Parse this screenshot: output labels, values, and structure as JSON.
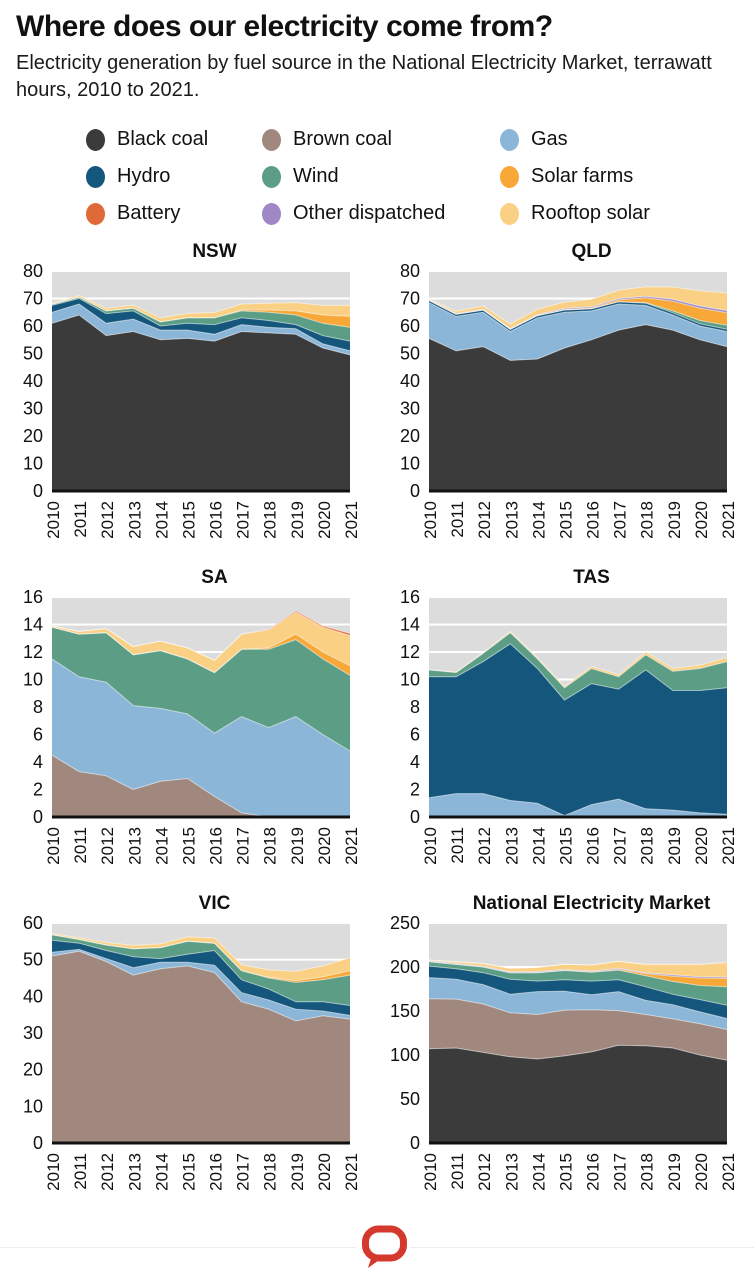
{
  "header": {
    "title": "Where does our electricity come from?",
    "subtitle": "Electricity generation by fuel source in the National Electricity Market, terrawatt hours, 2010 to 2021."
  },
  "colors": {
    "black_coal": "#3b3b3b",
    "brown_coal": "#a0887f",
    "gas": "#8cb6d7",
    "hydro": "#15567d",
    "wind": "#5c9e85",
    "solar_farms": "#f7a838",
    "battery": "#e0693a",
    "other_dispatched": "#9e88c6",
    "rooftop_solar": "#f9d084",
    "plot_bg": "#dcdcdc",
    "grid": "#ffffff",
    "axis": "#111111",
    "logo_red": "#d5382c"
  },
  "legend": {
    "items": [
      {
        "label": "Black coal",
        "key": "black_coal"
      },
      {
        "label": "Brown coal",
        "key": "brown_coal"
      },
      {
        "label": "Gas",
        "key": "gas"
      },
      {
        "label": "Hydro",
        "key": "hydro"
      },
      {
        "label": "Wind",
        "key": "wind"
      },
      {
        "label": "Solar farms",
        "key": "solar_farms"
      },
      {
        "label": "Battery",
        "key": "battery"
      },
      {
        "label": "Other dispatched",
        "key": "other_dispatched"
      },
      {
        "label": "Rooftop solar",
        "key": "rooftop_solar"
      }
    ]
  },
  "chart_data": [
    {
      "type": "area",
      "title": "NSW",
      "x": [
        2010,
        2011,
        2012,
        2013,
        2014,
        2015,
        2016,
        2017,
        2018,
        2019,
        2020,
        2021
      ],
      "ylim": [
        0,
        80
      ],
      "ytick": 10,
      "units": "TWh",
      "series": [
        {
          "name": "Black coal",
          "key": "black_coal",
          "values": [
            61,
            64,
            56.5,
            58,
            55,
            55.5,
            54.5,
            58,
            57.5,
            57,
            52,
            49.5
          ]
        },
        {
          "name": "Gas",
          "key": "gas",
          "values": [
            4,
            4,
            4.5,
            4.5,
            3.5,
            3,
            2.5,
            2.5,
            2,
            2,
            1.5,
            1.5
          ]
        },
        {
          "name": "Hydro",
          "key": "hydro",
          "values": [
            2.5,
            2,
            3.5,
            3,
            1.5,
            2.5,
            3.5,
            2.5,
            2.5,
            1.5,
            3,
            3.5
          ]
        },
        {
          "name": "Wind",
          "key": "wind",
          "values": [
            0.4,
            0.5,
            1,
            1,
            1.5,
            2,
            2.5,
            2.5,
            3,
            3.5,
            4.5,
            5
          ]
        },
        {
          "name": "Solar farms",
          "key": "solar_farms",
          "values": [
            0,
            0,
            0,
            0,
            0,
            0,
            0,
            0.3,
            0.8,
            1.5,
            3,
            4
          ]
        },
        {
          "name": "Rooftop solar",
          "key": "rooftop_solar",
          "values": [
            0.3,
            0.6,
            0.9,
            1.1,
            1.4,
            1.6,
            1.9,
            2.2,
            2.5,
            3,
            3.5,
            4
          ]
        }
      ]
    },
    {
      "type": "area",
      "title": "QLD",
      "x": [
        2010,
        2011,
        2012,
        2013,
        2014,
        2015,
        2016,
        2017,
        2018,
        2019,
        2020,
        2021
      ],
      "ylim": [
        0,
        80
      ],
      "ytick": 10,
      "units": "TWh",
      "series": [
        {
          "name": "Black coal",
          "key": "black_coal",
          "values": [
            55.5,
            51,
            52.5,
            47.5,
            48,
            52,
            55,
            58.5,
            60.5,
            58.5,
            55,
            52.5
          ]
        },
        {
          "name": "Gas",
          "key": "gas",
          "values": [
            13,
            12.5,
            12.5,
            10.5,
            15,
            13,
            10.5,
            9.5,
            7,
            5.5,
            5,
            5.5
          ]
        },
        {
          "name": "Hydro",
          "key": "hydro",
          "values": [
            0.8,
            0.8,
            0.8,
            0.8,
            0.8,
            0.8,
            0.8,
            0.8,
            0.8,
            0.8,
            0.8,
            0.8
          ]
        },
        {
          "name": "Wind",
          "key": "wind",
          "values": [
            0,
            0,
            0,
            0,
            0,
            0,
            0,
            0,
            0.2,
            0.7,
            1.2,
            1.5
          ]
        },
        {
          "name": "Solar farms",
          "key": "solar_farms",
          "values": [
            0,
            0,
            0,
            0,
            0,
            0.2,
            0.3,
            0.7,
            1.8,
            3.5,
            4.5,
            4.5
          ]
        },
        {
          "name": "Other dispatched",
          "key": "other_dispatched",
          "values": [
            0.3,
            0.3,
            0.3,
            0.3,
            0.3,
            0.4,
            0.4,
            0.5,
            0.5,
            0.7,
            0.8,
            0.8
          ]
        },
        {
          "name": "Rooftop solar",
          "key": "rooftop_solar",
          "values": [
            0.3,
            0.8,
            1.2,
            1.6,
            2,
            2.3,
            2.7,
            3,
            3.5,
            4.5,
            5.5,
            6.5
          ]
        }
      ]
    },
    {
      "type": "area",
      "title": "SA",
      "x": [
        2010,
        2011,
        2012,
        2013,
        2014,
        2015,
        2016,
        2017,
        2018,
        2019,
        2020,
        2021
      ],
      "ylim": [
        0,
        16
      ],
      "ytick": 2,
      "units": "TWh",
      "series": [
        {
          "name": "Brown coal",
          "key": "brown_coal",
          "values": [
            4.5,
            3.3,
            3,
            2,
            2.6,
            2.8,
            1.5,
            0.3,
            0,
            0,
            0,
            0
          ]
        },
        {
          "name": "Gas",
          "key": "gas",
          "values": [
            7,
            6.9,
            6.8,
            6.1,
            5.3,
            4.7,
            4.6,
            7,
            6.5,
            7.3,
            6,
            4.8
          ]
        },
        {
          "name": "Wind",
          "key": "wind",
          "values": [
            2.3,
            3.1,
            3.6,
            3.7,
            4.2,
            4,
            4.4,
            4.9,
            5.7,
            5.6,
            5.5,
            5.5
          ]
        },
        {
          "name": "Solar farms",
          "key": "solar_farms",
          "values": [
            0,
            0,
            0,
            0,
            0,
            0,
            0,
            0,
            0.1,
            0.4,
            0.5,
            0.7
          ]
        },
        {
          "name": "Rooftop solar",
          "key": "rooftop_solar",
          "values": [
            0.1,
            0.2,
            0.3,
            0.6,
            0.7,
            0.8,
            0.9,
            1.1,
            1.3,
            1.6,
            1.8,
            2.2
          ]
        },
        {
          "name": "Battery",
          "key": "battery",
          "values": [
            0,
            0,
            0,
            0,
            0,
            0,
            0,
            0,
            0.05,
            0.1,
            0.1,
            0.15
          ]
        }
      ]
    },
    {
      "type": "area",
      "title": "TAS",
      "x": [
        2010,
        2011,
        2012,
        2013,
        2014,
        2015,
        2016,
        2017,
        2018,
        2019,
        2020,
        2021
      ],
      "ylim": [
        0,
        16
      ],
      "ytick": 2,
      "units": "TWh",
      "series": [
        {
          "name": "Gas",
          "key": "gas",
          "values": [
            1.4,
            1.7,
            1.7,
            1.2,
            1,
            0.1,
            0.9,
            1.3,
            0.6,
            0.5,
            0.3,
            0.2
          ]
        },
        {
          "name": "Hydro",
          "key": "hydro",
          "values": [
            8.8,
            8.5,
            9.6,
            11.4,
            9.8,
            8.4,
            8.8,
            8,
            10.1,
            8.7,
            8.9,
            9.2
          ]
        },
        {
          "name": "Wind",
          "key": "wind",
          "values": [
            0.5,
            0.3,
            0.6,
            0.8,
            0.7,
            0.9,
            1.1,
            0.9,
            1.1,
            1.4,
            1.6,
            1.9
          ]
        },
        {
          "name": "Rooftop solar",
          "key": "rooftop_solar",
          "values": [
            0,
            0.05,
            0.05,
            0.1,
            0.1,
            0.1,
            0.15,
            0.15,
            0.2,
            0.2,
            0.25,
            0.3
          ]
        }
      ]
    },
    {
      "type": "area",
      "title": "VIC",
      "x": [
        2010,
        2011,
        2012,
        2013,
        2014,
        2015,
        2016,
        2017,
        2018,
        2019,
        2020,
        2021
      ],
      "ylim": [
        0,
        60
      ],
      "ytick": 10,
      "units": "TWh",
      "series": [
        {
          "name": "Brown coal",
          "key": "brown_coal",
          "values": [
            51,
            52.3,
            49.5,
            45.8,
            47.5,
            48.3,
            46.5,
            38.5,
            36.5,
            33.3,
            34.7,
            33.8
          ]
        },
        {
          "name": "Gas",
          "key": "gas",
          "values": [
            1,
            0.5,
            0.8,
            2,
            1.8,
            1,
            2,
            2.5,
            2.5,
            3.2,
            1.3,
            1
          ]
        },
        {
          "name": "Hydro",
          "key": "hydro",
          "values": [
            3.3,
            1.7,
            2.2,
            3,
            1,
            2.2,
            4,
            3.5,
            3,
            2,
            2.5,
            2.7
          ]
        },
        {
          "name": "Wind",
          "key": "wind",
          "values": [
            1.5,
            1,
            1.5,
            2.2,
            3,
            3.5,
            2,
            2.5,
            3,
            5.3,
            6,
            8.3
          ]
        },
        {
          "name": "Solar farms",
          "key": "solar_farms",
          "values": [
            0,
            0,
            0,
            0,
            0,
            0,
            0,
            0,
            0.2,
            0.5,
            0.8,
            1.2
          ]
        },
        {
          "name": "Rooftop solar",
          "key": "rooftop_solar",
          "values": [
            0.3,
            0.5,
            0.7,
            0.9,
            1,
            1.2,
            1.4,
            1.6,
            2,
            2.5,
            3,
            3.5
          ]
        }
      ]
    },
    {
      "type": "area",
      "title": "National Electricity Market",
      "x": [
        2010,
        2011,
        2012,
        2013,
        2014,
        2015,
        2016,
        2017,
        2018,
        2019,
        2020,
        2021
      ],
      "ylim": [
        0,
        250
      ],
      "ytick": 50,
      "units": "TWh",
      "series": [
        {
          "name": "Black coal",
          "key": "black_coal",
          "values": [
            107,
            108,
            103,
            98,
            95.5,
            99,
            103.5,
            111,
            110.5,
            108,
            100,
            94
          ]
        },
        {
          "name": "Brown coal",
          "key": "brown_coal",
          "values": [
            57,
            55.5,
            55,
            50,
            50.5,
            52,
            48,
            39.5,
            35.5,
            33,
            35.5,
            35
          ]
        },
        {
          "name": "Gas",
          "key": "gas",
          "values": [
            24,
            22.5,
            22,
            21,
            26,
            21.5,
            17,
            21.5,
            16,
            16,
            13.5,
            12.5
          ]
        },
        {
          "name": "Hydro",
          "key": "hydro",
          "values": [
            13,
            12,
            13.5,
            17,
            12,
            13,
            15.5,
            13.5,
            15.5,
            12,
            14,
            15
          ]
        },
        {
          "name": "Wind",
          "key": "wind",
          "values": [
            5,
            5,
            6.5,
            7.5,
            9.5,
            10.5,
            10,
            11,
            12.5,
            14.5,
            16,
            21
          ]
        },
        {
          "name": "Solar farms",
          "key": "solar_farms",
          "values": [
            0,
            0,
            0,
            0,
            0,
            0.2,
            0.3,
            1,
            2.5,
            6,
            8.5,
            9.5
          ]
        },
        {
          "name": "Other dispatched",
          "key": "other_dispatched",
          "values": [
            1,
            1,
            1,
            1,
            1,
            1,
            1,
            1,
            1,
            1.5,
            1.5,
            1.5
          ]
        },
        {
          "name": "Rooftop solar",
          "key": "rooftop_solar",
          "values": [
            1,
            2,
            3,
            4,
            5,
            6,
            7,
            8,
            9.5,
            12,
            14,
            16.5
          ]
        },
        {
          "name": "Battery",
          "key": "battery",
          "values": [
            0,
            0,
            0,
            0,
            0,
            0,
            0,
            0,
            0.1,
            0.1,
            0.2,
            0.3
          ]
        }
      ]
    }
  ],
  "footer": {
    "logo": "the-conversation-speech-bubble-logo"
  }
}
